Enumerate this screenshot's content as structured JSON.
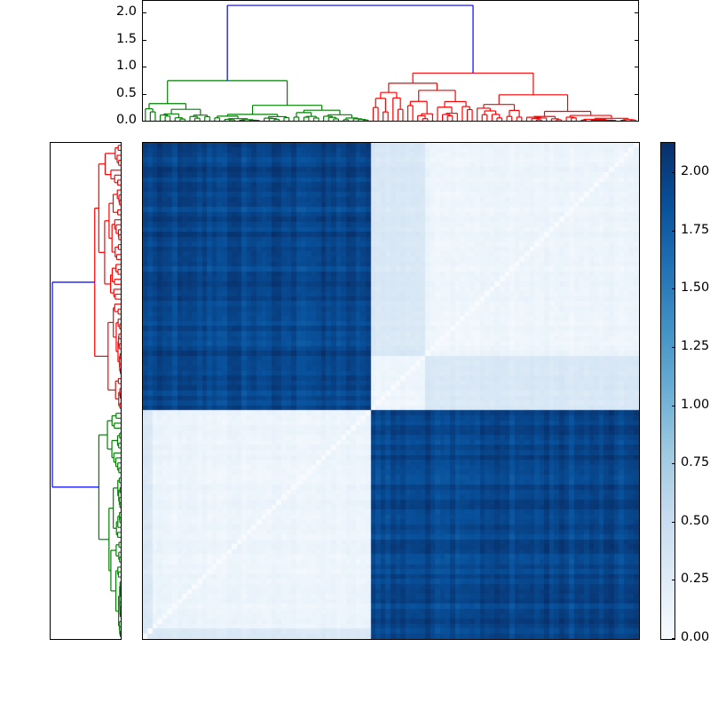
{
  "chart_data": {
    "type": "heatmap",
    "title": "",
    "description": "Hierarchically clustered distance matrix with dendrograms on top and left and a Blues colorbar",
    "colormap": "Blues",
    "n_leaves": 100,
    "clusters": [
      {
        "name": "green",
        "color": "#008000",
        "size": 46,
        "merge_height": 0.74,
        "column_order_position": "left",
        "row_order_position": "bottom"
      },
      {
        "name": "red",
        "color": "#ff0000",
        "size": 54,
        "merge_height": 0.88,
        "column_order_position": "right",
        "row_order_position": "top"
      }
    ],
    "root_link": {
      "color": "#0000ff",
      "height": 2.13
    },
    "block_values": {
      "within_cluster_min": 0.0,
      "within_cluster_typical": 0.1,
      "red_subcluster_block": 0.3,
      "between_cluster_typical": 1.95,
      "between_cluster_max": 2.1
    },
    "top_dendrogram": {
      "ylim": [
        0.0,
        2.2
      ],
      "yticks": [
        0.0,
        0.5,
        1.0,
        1.5,
        2.0
      ],
      "ytick_labels": [
        "0.0",
        "0.5",
        "1.0",
        "1.5",
        "2.0"
      ],
      "green_internal_heights": [
        0.74,
        0.52,
        0.4,
        0.25,
        0.22,
        0.18,
        0.15,
        0.12,
        0.1,
        0.08
      ],
      "red_internal_heights": [
        0.88,
        0.68,
        0.48,
        0.4,
        0.32,
        0.3,
        0.22,
        0.2,
        0.15,
        0.12,
        0.1
      ]
    },
    "colorbar": {
      "vmin": 0.0,
      "vmax": 2.13,
      "ticks": [
        0.0,
        0.25,
        0.5,
        0.75,
        1.0,
        1.25,
        1.5,
        1.75,
        2.0
      ],
      "tick_labels": [
        "0.00",
        "0.25",
        "0.50",
        "0.75",
        "1.00",
        "1.25",
        "1.50",
        "1.75",
        "2.00"
      ]
    },
    "xlabel": "",
    "ylabel": "",
    "grid": false
  },
  "colors": {
    "green_cluster": "#008000",
    "red_cluster": "#ff0000",
    "root_link": "#0000ff",
    "high": "#08306b",
    "low": "#f7fbff"
  }
}
